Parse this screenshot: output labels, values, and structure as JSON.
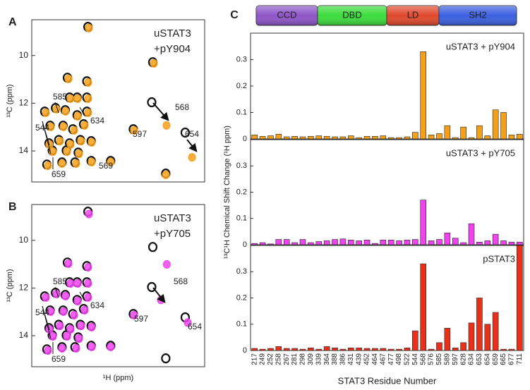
{
  "chart_data": [
    {
      "type": "scatter",
      "panel_label": "A",
      "y_label": "¹³C (ppm)",
      "x_reversed": true,
      "y_reversed": true,
      "xlim": [
        -0.3,
        1.3
      ],
      "ylim": [
        8.5,
        15.3
      ],
      "yticks": [
        10,
        12,
        14
      ],
      "series": [
        {
          "name": "uSTAT3",
          "color": "#111111",
          "x": [
            0.78,
            0.97,
            0.79,
            0.95,
            0.88,
            0.79,
            1.18,
            1.08,
            0.99,
            0.88,
            0.79,
            1.13,
            1.01,
            0.92,
            0.82,
            1.14,
            1.05,
            0.95,
            0.85,
            0.75,
            1.11,
            0.98,
            0.87,
            1.16,
            1.02,
            0.9,
            0.75,
            0.57,
            0.36,
            0.18,
            0.19,
            0.06,
            -0.12
          ],
          "y": [
            8.8,
            10.93,
            11.08,
            11.76,
            11.76,
            11.76,
            12.35,
            12.2,
            12.29,
            12.5,
            12.35,
            12.94,
            12.94,
            13.09,
            12.88,
            13.68,
            13.54,
            13.68,
            13.54,
            13.59,
            13.98,
            13.98,
            14.07,
            14.57,
            14.48,
            14.48,
            14.42,
            14.42,
            13.09,
            10.28,
            11.96,
            14.95,
            13.23
          ]
        },
        {
          "name": "+pY904",
          "color": "#f5a01a",
          "x": [
            0.771,
            0.96,
            0.778,
            0.941,
            0.875,
            0.778,
            1.169,
            1.071,
            0.987,
            0.875,
            0.778,
            1.124,
            1.006,
            0.908,
            0.81,
            1.137,
            1.039,
            0.941,
            0.843,
            0.745,
            1.104,
            0.973,
            0.862,
            1.15,
            1.019,
            0.889,
            0.745,
            0.569,
            0.353,
            0.17,
            0.053,
            0.059,
            -0.183
          ],
          "y": [
            8.85,
            10.98,
            11.13,
            11.81,
            11.81,
            11.81,
            12.4,
            12.25,
            12.34,
            12.55,
            12.4,
            12.99,
            12.99,
            13.14,
            12.93,
            13.73,
            13.59,
            13.73,
            13.59,
            13.64,
            14.03,
            14.03,
            14.12,
            14.62,
            14.53,
            14.53,
            14.47,
            14.47,
            13.14,
            10.33,
            12.93,
            15.0,
            14.27
          ]
        }
      ],
      "annotations": [
        "585",
        "544",
        "634",
        "569",
        "659",
        "597",
        "568",
        "654"
      ]
    },
    {
      "type": "scatter",
      "panel_label": "B",
      "y_label": "¹³C (ppm)",
      "x_label": "¹H (ppm)",
      "x_reversed": true,
      "y_reversed": true,
      "xlim": [
        -0.3,
        1.3
      ],
      "ylim": [
        8.5,
        15.3
      ],
      "yticks": [
        10,
        12,
        14
      ],
      "series": [
        {
          "name": "uSTAT3",
          "color": "#111111",
          "x": [
            0.78,
            0.97,
            0.79,
            0.95,
            0.88,
            0.79,
            1.18,
            1.08,
            0.99,
            0.88,
            0.79,
            1.13,
            1.01,
            0.92,
            0.82,
            1.14,
            1.05,
            0.95,
            0.85,
            0.75,
            1.11,
            0.98,
            0.87,
            1.16,
            1.02,
            0.9,
            0.75,
            0.57,
            0.36,
            0.18,
            0.19,
            0.06,
            -0.12
          ],
          "y": [
            8.8,
            10.93,
            11.08,
            11.76,
            11.76,
            11.76,
            12.35,
            12.2,
            12.29,
            12.5,
            12.35,
            12.94,
            12.94,
            13.09,
            12.88,
            13.68,
            13.54,
            13.68,
            13.54,
            13.59,
            13.98,
            13.98,
            14.07,
            14.57,
            14.48,
            14.48,
            14.42,
            14.42,
            13.09,
            10.28,
            11.96,
            14.95,
            13.23
          ]
        },
        {
          "name": "+pY705",
          "color": "#ee44ee",
          "x": [
            0.771,
            0.96,
            0.778,
            0.941,
            0.875,
            0.778,
            1.169,
            1.071,
            0.987,
            0.875,
            0.778,
            1.124,
            1.006,
            0.908,
            0.81,
            1.137,
            1.039,
            0.941,
            0.843,
            0.745,
            1.104,
            0.973,
            0.862,
            1.15,
            1.019,
            0.889,
            0.745,
            0.569,
            0.353,
            0.05,
            0.105,
            -0.143
          ],
          "y": [
            8.9,
            10.98,
            11.13,
            11.81,
            11.81,
            11.81,
            12.4,
            12.25,
            12.34,
            12.55,
            12.4,
            12.99,
            12.99,
            13.14,
            12.93,
            13.73,
            13.59,
            13.73,
            13.59,
            13.64,
            14.03,
            14.03,
            14.12,
            14.62,
            14.53,
            14.53,
            14.47,
            14.47,
            13.14,
            11.01,
            12.5,
            13.45
          ]
        }
      ],
      "annotations": [
        "585",
        "544",
        "634",
        "659",
        "597",
        "568",
        "654"
      ]
    },
    {
      "type": "bar",
      "title": "uSTAT3 + pY904",
      "color": "#f5a01a",
      "ylim": [
        0,
        0.4
      ],
      "yticks": [
        0,
        0.1,
        0.2,
        0.3
      ],
      "values": [
        0.015,
        0.01,
        0.012,
        0.018,
        0.008,
        0.01,
        0.008,
        0.01,
        0.012,
        0.01,
        0.008,
        0.008,
        0.012,
        0.005,
        0.01,
        0.01,
        0.012,
        0.005,
        0.005,
        0.008,
        0.025,
        0.33,
        0.015,
        0.02,
        0.05,
        0.005,
        0.045,
        0.005,
        0.05,
        0.012,
        0.11,
        0.1,
        0.015,
        0.018
      ]
    },
    {
      "type": "bar",
      "title": "uSTAT3 + pY705",
      "y_label": "¹³C¹H Chemical Shift Change (¹H ppm)",
      "color": "#ee44ee",
      "ylim": [
        0,
        0.4
      ],
      "yticks": [
        0,
        0.1,
        0.2,
        0.3
      ],
      "values": [
        0.005,
        0.008,
        0.003,
        0.02,
        0.02,
        0.008,
        0.02,
        0.008,
        0.012,
        0.015,
        0.02,
        0.022,
        0.018,
        0.015,
        0.018,
        0.005,
        0.018,
        0.018,
        0.015,
        0.018,
        0.02,
        0.17,
        0.015,
        0.02,
        0.045,
        0.025,
        0.008,
        0.08,
        0.01,
        0.015,
        0.04,
        0.015,
        0.01,
        0.01
      ]
    },
    {
      "type": "bar",
      "title": "pSTAT3",
      "x_label": "STAT3 Residue Number",
      "color": "#e8311a",
      "ylim": [
        0,
        0.4
      ],
      "yticks": [
        0,
        0.1,
        0.2,
        0.3
      ],
      "categories": [
        "217",
        "249",
        "252",
        "258",
        "267",
        "281",
        "298",
        "309",
        "339",
        "364",
        "388",
        "386",
        "431",
        "439",
        "452",
        "464",
        "467",
        "477",
        "498",
        "522",
        "544",
        "568",
        "576",
        "585",
        "589",
        "597",
        "628",
        "634",
        "653",
        "654",
        "659",
        "665",
        "677",
        "711"
      ],
      "values": [
        0.008,
        0.005,
        0.008,
        0.015,
        0.008,
        0.008,
        0.005,
        0.01,
        0.005,
        0.015,
        0.01,
        0.005,
        0.01,
        0.01,
        0.008,
        0.008,
        0.008,
        0.005,
        0.005,
        0.01,
        0.075,
        0.33,
        0.005,
        0.03,
        0.085,
        0.01,
        0.03,
        0.105,
        0.2,
        0.1,
        0.145,
        0.005,
        0.005,
        0.4
      ]
    }
  ],
  "domain_map": {
    "panel_label": "C",
    "domains": [
      {
        "name": "CCD",
        "color": "#8e55c8"
      },
      {
        "name": "DBD",
        "color": "#3cdc3c"
      },
      {
        "name": "LD",
        "color": "#e0492c"
      },
      {
        "name": "SH2",
        "color": "#3b5fe0"
      }
    ]
  }
}
